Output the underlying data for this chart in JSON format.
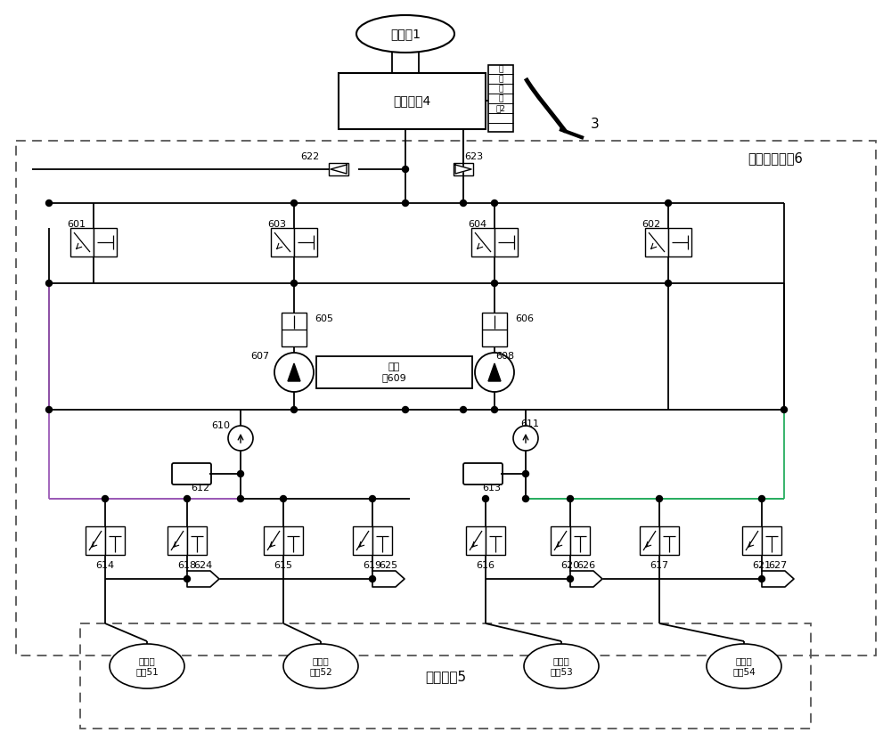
{
  "bg_color": "#ffffff",
  "lc": "#000000",
  "pc": "#9b59b6",
  "gc": "#27ae60",
  "figsize": [
    10.0,
    8.32
  ],
  "dpi": 100,
  "texts": {
    "oil_res": "储油室1",
    "master_cyl": "制动主缸4",
    "vac_boost_1": "真",
    "vac_boost_2": "空",
    "vac_boost_3": "助",
    "vac_boost_4": "力",
    "vac_boost_5": "器2",
    "pedal": "3",
    "module": "压力调节模块6",
    "brake_cyl": "制动轮缸5",
    "pump_motor": "泵电\n机609",
    "wc51": "右后轮\n轮缸51",
    "wc52": "左前轮\n轮缸52",
    "wc53": "右前轮\n轮缸53",
    "wc54": "左后轮\n轮缸54"
  }
}
